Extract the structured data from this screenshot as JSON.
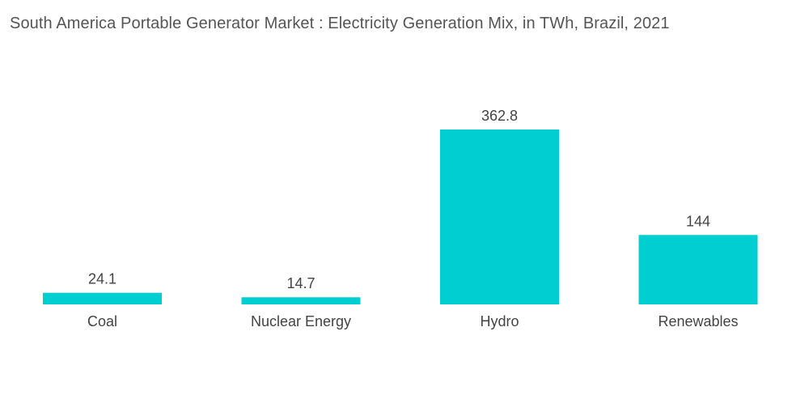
{
  "chart_data": {
    "type": "bar",
    "title": "South America Portable Generator Market : Electricity Generation Mix, in TWh, Brazil, 2021",
    "categories": [
      "Coal",
      "Nuclear Energy",
      "Hydro",
      "Renewables"
    ],
    "values": [
      24.1,
      14.7,
      362.8,
      144
    ],
    "value_labels": [
      "24.1",
      "14.7",
      "362.8",
      "144"
    ],
    "xlabel": "",
    "ylabel": "",
    "ylim": [
      0,
      362.8
    ],
    "grid": false,
    "legend": "none",
    "bar_color": "#00CED1"
  }
}
